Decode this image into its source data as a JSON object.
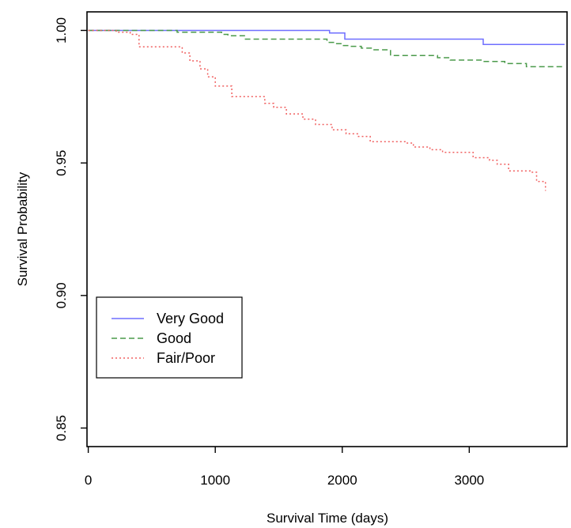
{
  "chart_data": {
    "type": "line",
    "step": true,
    "title": "",
    "xlabel": "Survival Time (days)",
    "ylabel": "Survival Probability",
    "xlim": [
      -10,
      3770
    ],
    "ylim": [
      0.843,
      1.007
    ],
    "x_ticks": [
      0,
      1000,
      2000,
      3000
    ],
    "x_tick_labels": [
      "0",
      "1000",
      "2000",
      "3000"
    ],
    "y_ticks": [
      0.85,
      0.9,
      0.95,
      1.0
    ],
    "y_tick_labels": [
      "0.85",
      "0.90",
      "0.95",
      "1.00"
    ],
    "grid": false,
    "legend_position": "bottom-left",
    "series": [
      {
        "name": "Very Good",
        "color": "#6f6fff",
        "dash": "solid",
        "points": [
          [
            0,
            1.0
          ],
          [
            1900,
            0.999
          ],
          [
            2020,
            0.9967
          ],
          [
            3110,
            0.9947
          ],
          [
            3750,
            0.9947
          ]
        ]
      },
      {
        "name": "Good",
        "color": "#4a9a4a",
        "dash": "dashed",
        "points": [
          [
            0,
            1.0
          ],
          [
            700,
            0.9993
          ],
          [
            1050,
            0.9985
          ],
          [
            1100,
            0.998
          ],
          [
            1230,
            0.9967
          ],
          [
            1880,
            0.9955
          ],
          [
            1950,
            0.995
          ],
          [
            2000,
            0.9943
          ],
          [
            2050,
            0.994
          ],
          [
            2150,
            0.9933
          ],
          [
            2250,
            0.9927
          ],
          [
            2380,
            0.9905
          ],
          [
            2750,
            0.9897
          ],
          [
            2850,
            0.9888
          ],
          [
            3100,
            0.9883
          ],
          [
            3280,
            0.9875
          ],
          [
            3450,
            0.9863
          ],
          [
            3750,
            0.9863
          ]
        ]
      },
      {
        "name": "Fair/Poor",
        "color": "#f06060",
        "dash": "dotted",
        "points": [
          [
            0,
            1.0
          ],
          [
            220,
            0.9993
          ],
          [
            330,
            0.9985
          ],
          [
            400,
            0.9938
          ],
          [
            740,
            0.9915
          ],
          [
            800,
            0.9885
          ],
          [
            880,
            0.9855
          ],
          [
            940,
            0.9825
          ],
          [
            1000,
            0.979
          ],
          [
            1130,
            0.975
          ],
          [
            1390,
            0.9725
          ],
          [
            1460,
            0.971
          ],
          [
            1560,
            0.9685
          ],
          [
            1690,
            0.9665
          ],
          [
            1790,
            0.9645
          ],
          [
            1920,
            0.9625
          ],
          [
            2030,
            0.961
          ],
          [
            2120,
            0.96
          ],
          [
            2220,
            0.958
          ],
          [
            2500,
            0.9575
          ],
          [
            2560,
            0.956
          ],
          [
            2690,
            0.955
          ],
          [
            2790,
            0.954
          ],
          [
            3030,
            0.952
          ],
          [
            3160,
            0.951
          ],
          [
            3220,
            0.9495
          ],
          [
            3310,
            0.947
          ],
          [
            3480,
            0.9465
          ],
          [
            3530,
            0.943
          ],
          [
            3600,
            0.9395
          ]
        ]
      }
    ]
  }
}
